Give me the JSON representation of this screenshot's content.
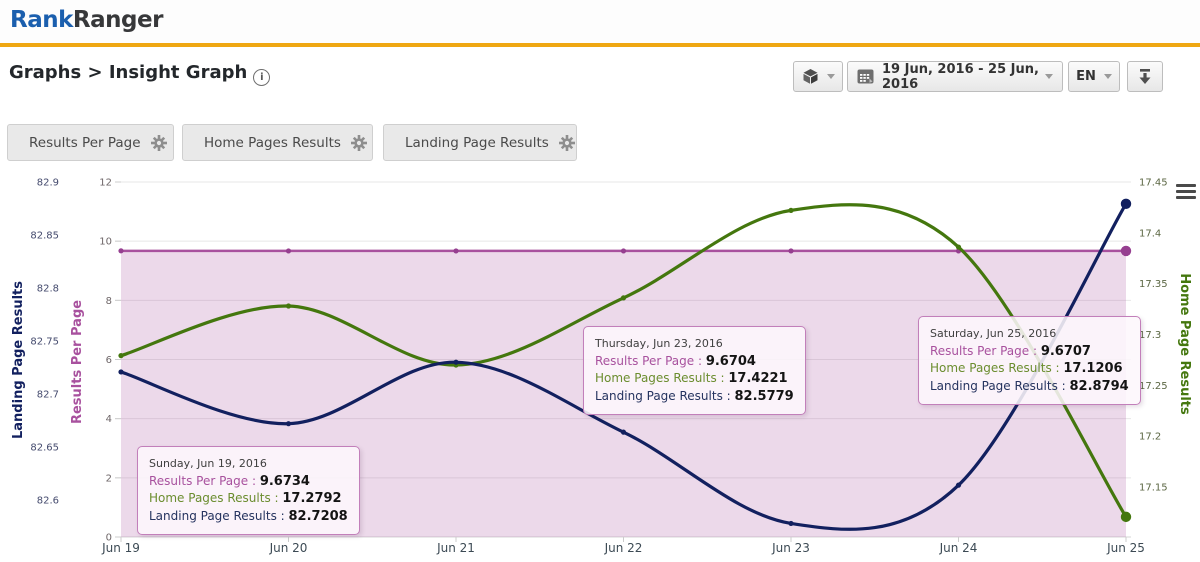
{
  "header": {
    "logo_part1": "Rank",
    "logo_part2": "Ranger"
  },
  "breadcrumb": {
    "title": "Graphs > Insight Graph",
    "info_icon_glyph": "i"
  },
  "toolbar": {
    "date_range": "19 Jun, 2016 - 25 Jun, 2016",
    "language": "EN"
  },
  "legend": {
    "items": [
      {
        "label": "Results Per Page",
        "color": "#a8519e"
      },
      {
        "label": "Home Pages Results",
        "color": "#44770e"
      },
      {
        "label": "Landing Page Results",
        "color": "#12205f"
      }
    ]
  },
  "chart_data": {
    "type": "line",
    "x_labels": [
      "Jun 19",
      "Jun 20",
      "Jun 21",
      "Jun 22",
      "Jun 23",
      "Jun 24",
      "Jun 25"
    ],
    "series": [
      {
        "name": "Results Per Page",
        "color": "#a8519e",
        "marker_color": "#963f90",
        "area": true,
        "area_fill": "rgba(168,81,158,0.22)",
        "axis": "results_per_page",
        "values": [
          9.6734,
          9.67,
          9.67,
          9.67,
          9.6704,
          9.67,
          9.6707
        ]
      },
      {
        "name": "Home Pages Results",
        "color": "#44770e",
        "marker_color": "#44770e",
        "area": false,
        "axis": "home_page_results",
        "values": [
          17.2792,
          17.328,
          17.27,
          17.336,
          17.4221,
          17.386,
          17.1206
        ]
      },
      {
        "name": "Landing Page Results",
        "color": "#12205f",
        "marker_color": "#12205f",
        "area": false,
        "axis": "landing_page_results",
        "values": [
          82.7208,
          82.672,
          82.73,
          82.664,
          82.5779,
          82.614,
          82.8794
        ]
      }
    ],
    "axes": {
      "results_per_page": {
        "title": "Results Per Page",
        "side": "inner-left",
        "ticks": [
          "12",
          "10",
          "8",
          "6",
          "4",
          "2",
          "0"
        ],
        "tick_color": "#6e6668",
        "title_color": "#a8519e"
      },
      "landing_page_results": {
        "title": "Landing Page Results",
        "side": "outer-left",
        "ticks": [
          "82.9",
          "82.85",
          "82.8",
          "82.75",
          "82.7",
          "82.65",
          "82.6"
        ],
        "tick_color": "#454b6e",
        "title_color": "#12205f"
      },
      "home_page_results": {
        "title": "Home Page Results",
        "side": "right",
        "ticks": [
          "17.45",
          "17.4",
          "17.35",
          "17.3",
          "17.25",
          "17.2",
          "17.15"
        ],
        "tick_color": "#5c6744",
        "title_color": "#44770e"
      }
    },
    "grid": "horizontal",
    "legend_position": "top-left-buttons",
    "tooltip_sep": " : ",
    "tooltips": [
      {
        "date": "Sunday, Jun 19, 2016",
        "results_per_page": "9.6734",
        "home_pages_results": "17.2792",
        "landing_page_results": "82.7208"
      },
      {
        "date": "Thursday, Jun 23, 2016",
        "results_per_page": "9.6704",
        "home_pages_results": "17.4221",
        "landing_page_results": "82.5779"
      },
      {
        "date": "Saturday, Jun 25, 2016",
        "results_per_page": "9.6707",
        "home_pages_results": "17.1206",
        "landing_page_results": "82.8794"
      }
    ]
  }
}
